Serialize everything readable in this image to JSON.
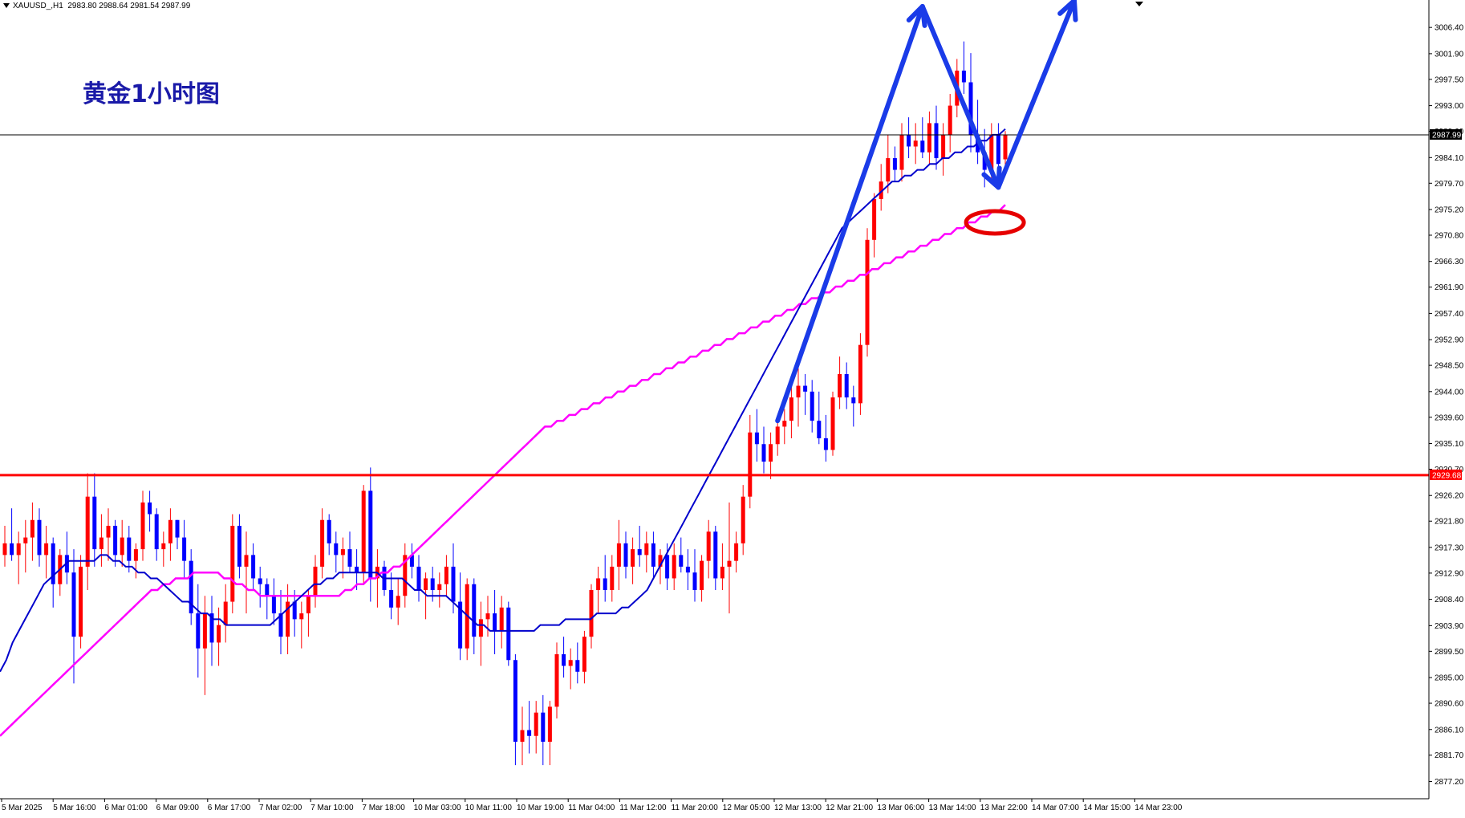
{
  "header": {
    "symbol": "XAUUSD_,H1",
    "ohlc": "2983.80 2988.64 2981.54 2987.99"
  },
  "overlay_title": "黄金1小时图",
  "colors": {
    "bull": "#ff0000",
    "bear": "#0000ff",
    "ma_fast": "#0000cc",
    "ma_slow": "#ff00ff",
    "support": "#ff0000",
    "annotation": "#1a3be8"
  },
  "chart_data": {
    "type": "candlestick",
    "symbol": "XAUUSD",
    "timeframe": "H1",
    "ylim": [
      2875.2,
      3010.0
    ],
    "y_ticks": [
      "3006.40",
      "3001.90",
      "2997.50",
      "2993.00",
      "2988.60",
      "2984.10",
      "2979.70",
      "2975.20",
      "2970.80",
      "2966.30",
      "2961.90",
      "2957.40",
      "2952.90",
      "2948.50",
      "2944.00",
      "2939.60",
      "2935.10",
      "2930.70",
      "2926.20",
      "2921.80",
      "2917.30",
      "2912.90",
      "2908.40",
      "2903.90",
      "2899.50",
      "2895.00",
      "2890.60",
      "2886.10",
      "2881.70",
      "2877.20"
    ],
    "x_ticks": [
      "5 Mar 2025",
      "5 Mar 16:00",
      "6 Mar 01:00",
      "6 Mar 09:00",
      "6 Mar 17:00",
      "7 Mar 02:00",
      "7 Mar 10:00",
      "7 Mar 18:00",
      "10 Mar 03:00",
      "10 Mar 11:00",
      "10 Mar 19:00",
      "11 Mar 04:00",
      "11 Mar 12:00",
      "11 Mar 20:00",
      "12 Mar 05:00",
      "12 Mar 13:00",
      "12 Mar 21:00",
      "13 Mar 06:00",
      "13 Mar 14:00",
      "13 Mar 22:00",
      "14 Mar 07:00",
      "14 Mar 15:00",
      "14 Mar 23:00"
    ],
    "current_price": 2987.99,
    "current_price_label": "2987.99",
    "support_level": 2929.68,
    "support_label": "2929.68",
    "candles": [
      [
        2916,
        2921,
        2914,
        2918
      ],
      [
        2918,
        2924,
        2915,
        2916
      ],
      [
        2916,
        2920,
        2911,
        2918
      ],
      [
        2918,
        2922,
        2913,
        2919
      ],
      [
        2919,
        2925,
        2915,
        2922
      ],
      [
        2922,
        2924,
        2914,
        2916
      ],
      [
        2916,
        2921,
        2912,
        2918
      ],
      [
        2918,
        2919,
        2907,
        2911
      ],
      [
        2911,
        2917,
        2909,
        2916
      ],
      [
        2916,
        2920,
        2911,
        2913
      ],
      [
        2913,
        2917,
        2894,
        2902
      ],
      [
        2902,
        2916,
        2900,
        2914
      ],
      [
        2914,
        2930,
        2910,
        2926
      ],
      [
        2926,
        2930,
        2914,
        2917
      ],
      [
        2917,
        2923,
        2914,
        2919
      ],
      [
        2919,
        2924,
        2915,
        2921
      ],
      [
        2921,
        2922,
        2914,
        2916
      ],
      [
        2916,
        2922,
        2914,
        2919
      ],
      [
        2919,
        2921,
        2913,
        2915
      ],
      [
        2915,
        2918,
        2912,
        2917
      ],
      [
        2917,
        2927,
        2915,
        2925
      ],
      [
        2925,
        2927,
        2920,
        2923
      ],
      [
        2923,
        2924,
        2915,
        2917
      ],
      [
        2917,
        2920,
        2914,
        2918
      ],
      [
        2918,
        2924,
        2915,
        2922
      ],
      [
        2922,
        2922,
        2917,
        2919
      ],
      [
        2919,
        2922,
        2912,
        2915
      ],
      [
        2915,
        2917,
        2904,
        2906
      ],
      [
        2906,
        2911,
        2895,
        2900
      ],
      [
        2900,
        2909,
        2892,
        2906
      ],
      [
        2906,
        2909,
        2897,
        2901
      ],
      [
        2901,
        2907,
        2897,
        2904
      ],
      [
        2904,
        2911,
        2901,
        2908
      ],
      [
        2908,
        2923,
        2906,
        2921
      ],
      [
        2921,
        2923,
        2912,
        2914
      ],
      [
        2914,
        2920,
        2906,
        2916
      ],
      [
        2916,
        2918,
        2910,
        2912
      ],
      [
        2912,
        2914,
        2907,
        2911
      ],
      [
        2911,
        2912,
        2905,
        2909
      ],
      [
        2909,
        2912,
        2904,
        2906
      ],
      [
        2906,
        2910,
        2899,
        2902
      ],
      [
        2902,
        2911,
        2899,
        2908
      ],
      [
        2908,
        2910,
        2902,
        2905
      ],
      [
        2905,
        2908,
        2900,
        2906
      ],
      [
        2906,
        2910,
        2902,
        2909
      ],
      [
        2909,
        2916,
        2907,
        2914
      ],
      [
        2914,
        2924,
        2912,
        2922
      ],
      [
        2922,
        2923,
        2916,
        2918
      ],
      [
        2918,
        2920,
        2913,
        2916
      ],
      [
        2916,
        2919,
        2912,
        2917
      ],
      [
        2917,
        2920,
        2913,
        2914
      ],
      [
        2914,
        2917,
        2910,
        2913
      ],
      [
        2913,
        2928,
        2911,
        2927
      ],
      [
        2927,
        2931,
        2908,
        2912
      ],
      [
        2912,
        2917,
        2907,
        2914
      ],
      [
        2914,
        2915,
        2909,
        2910
      ],
      [
        2910,
        2913,
        2905,
        2907
      ],
      [
        2907,
        2912,
        2904,
        2909
      ],
      [
        2909,
        2918,
        2907,
        2916
      ],
      [
        2916,
        2918,
        2912,
        2914
      ],
      [
        2914,
        2916,
        2908,
        2910
      ],
      [
        2910,
        2913,
        2905,
        2912
      ],
      [
        2912,
        2914,
        2908,
        2910
      ],
      [
        2910,
        2913,
        2907,
        2911
      ],
      [
        2911,
        2916,
        2909,
        2914
      ],
      [
        2914,
        2918,
        2906,
        2908
      ],
      [
        2908,
        2913,
        2898,
        2900
      ],
      [
        2900,
        2912,
        2898,
        2911
      ],
      [
        2911,
        2912,
        2899,
        2902
      ],
      [
        2902,
        2908,
        2897,
        2905
      ],
      [
        2905,
        2909,
        2902,
        2906
      ],
      [
        2906,
        2910,
        2899,
        2903
      ],
      [
        2903,
        2909,
        2900,
        2907
      ],
      [
        2907,
        2908,
        2897,
        2898
      ],
      [
        2898,
        2899,
        2880,
        2884
      ],
      [
        2884,
        2890,
        2880,
        2886
      ],
      [
        2886,
        2891,
        2882,
        2885
      ],
      [
        2885,
        2891,
        2882,
        2889
      ],
      [
        2889,
        2892,
        2880,
        2884
      ],
      [
        2884,
        2891,
        2880,
        2890
      ],
      [
        2890,
        2901,
        2888,
        2899
      ],
      [
        2899,
        2902,
        2895,
        2897
      ],
      [
        2897,
        2900,
        2893,
        2898
      ],
      [
        2898,
        2901,
        2894,
        2896
      ],
      [
        2896,
        2903,
        2894,
        2902
      ],
      [
        2902,
        2911,
        2900,
        2910
      ],
      [
        2910,
        2914,
        2906,
        2912
      ],
      [
        2912,
        2916,
        2908,
        2910
      ],
      [
        2910,
        2916,
        2908,
        2914
      ],
      [
        2914,
        2922,
        2910,
        2918
      ],
      [
        2918,
        2920,
        2912,
        2914
      ],
      [
        2914,
        2919,
        2911,
        2917
      ],
      [
        2917,
        2921,
        2914,
        2916
      ],
      [
        2916,
        2920,
        2913,
        2918
      ],
      [
        2918,
        2920,
        2912,
        2914
      ],
      [
        2914,
        2917,
        2911,
        2916
      ],
      [
        2916,
        2918,
        2910,
        2912
      ],
      [
        2912,
        2918,
        2910,
        2916
      ],
      [
        2916,
        2919,
        2913,
        2914
      ],
      [
        2914,
        2917,
        2910,
        2913
      ],
      [
        2913,
        2917,
        2908,
        2910
      ],
      [
        2910,
        2916,
        2908,
        2915
      ],
      [
        2915,
        2922,
        2912,
        2920
      ],
      [
        2920,
        2921,
        2910,
        2912
      ],
      [
        2912,
        2918,
        2910,
        2914
      ],
      [
        2914,
        2925,
        2906,
        2915
      ],
      [
        2915,
        2920,
        2913,
        2918
      ],
      [
        2918,
        2928,
        2916,
        2926
      ],
      [
        2926,
        2940,
        2924,
        2937
      ],
      [
        2937,
        2941,
        2932,
        2935
      ],
      [
        2935,
        2938,
        2930,
        2932
      ],
      [
        2932,
        2937,
        2929,
        2935
      ],
      [
        2935,
        2940,
        2933,
        2938
      ],
      [
        2938,
        2941,
        2935,
        2939
      ],
      [
        2939,
        2945,
        2936,
        2943
      ],
      [
        2943,
        2948,
        2938,
        2945
      ],
      [
        2945,
        2947,
        2940,
        2944
      ],
      [
        2944,
        2946,
        2937,
        2939
      ],
      [
        2939,
        2944,
        2935,
        2936
      ],
      [
        2936,
        2940,
        2932,
        2934
      ],
      [
        2934,
        2944,
        2933,
        2943
      ],
      [
        2943,
        2950,
        2941,
        2947
      ],
      [
        2947,
        2949,
        2941,
        2943
      ],
      [
        2943,
        2945,
        2938,
        2942
      ],
      [
        2942,
        2954,
        2940,
        2952
      ],
      [
        2952,
        2972,
        2950,
        2970
      ],
      [
        2970,
        2978,
        2967,
        2977
      ],
      [
        2977,
        2983,
        2975,
        2980
      ],
      [
        2980,
        2988,
        2978,
        2984
      ],
      [
        2984,
        2986,
        2980,
        2982
      ],
      [
        2982,
        2990,
        2980,
        2988
      ],
      [
        2988,
        2991,
        2984,
        2986
      ],
      [
        2986,
        2990,
        2983,
        2987
      ],
      [
        2987,
        2991,
        2984,
        2985
      ],
      [
        2985,
        2992,
        2983,
        2990
      ],
      [
        2990,
        2993,
        2982,
        2984
      ],
      [
        2984,
        2990,
        2981,
        2988
      ],
      [
        2988,
        2995,
        2985,
        2993
      ],
      [
        2993,
        3001,
        2991,
        2999
      ],
      [
        2999,
        3004,
        2995,
        2997
      ],
      [
        2997,
        3002,
        2985,
        2988
      ],
      [
        2988,
        2994,
        2983,
        2985
      ],
      [
        2985,
        2989,
        2979,
        2982
      ],
      [
        2982,
        2990,
        2980,
        2988
      ],
      [
        2988,
        2990,
        2981,
        2983
      ],
      [
        2983.8,
        2988.64,
        2981.54,
        2987.99
      ]
    ],
    "ma_fast": {
      "name": "",
      "values": [
        2896,
        2898,
        2901,
        2903,
        2905,
        2907,
        2909,
        2911,
        2912,
        2913,
        2914,
        2915,
        2915,
        2915,
        2915,
        2915,
        2916,
        2916,
        2915,
        2915,
        2914,
        2914,
        2913,
        2913,
        2912,
        2912,
        2911,
        2910,
        2909,
        2908,
        2908,
        2907,
        2906,
        2906,
        2905,
        2905,
        2904,
        2904,
        2904,
        2904,
        2904,
        2904,
        2904,
        2904,
        2905,
        2906,
        2907,
        2908,
        2909,
        2910,
        2911,
        2911,
        2912,
        2912,
        2913,
        2913,
        2913,
        2913,
        2913,
        2913,
        2913,
        2912,
        2912,
        2912,
        2912,
        2911,
        2910,
        2910,
        2909,
        2909,
        2909,
        2909,
        2908,
        2907,
        2906,
        2905,
        2904,
        2904,
        2903,
        2903,
        2903,
        2903,
        2903,
        2903,
        2903,
        2903,
        2904,
        2904,
        2904,
        2904,
        2905,
        2905,
        2905,
        2905,
        2905,
        2906,
        2906,
        2906,
        2906,
        2907,
        2907,
        2908,
        2909,
        2910,
        2912,
        2914,
        2916,
        2918,
        2920,
        2922,
        2924,
        2926,
        2928,
        2930,
        2932,
        2934,
        2936,
        2938,
        2940,
        2942,
        2944,
        2946,
        2948,
        2950,
        2952,
        2954,
        2956,
        2958,
        2960,
        2962,
        2964,
        2966,
        2968,
        2970,
        2972,
        2973,
        2974,
        2975,
        2976,
        2977,
        2978,
        2979,
        2980,
        2980,
        2981,
        2981,
        2982,
        2982,
        2983,
        2983,
        2984,
        2984,
        2985,
        2985,
        2986,
        2986,
        2987,
        2987,
        2988,
        2988,
        2989
      ]
    },
    "ma_slow": {
      "name": "",
      "values": [
        2885,
        2886,
        2887,
        2888,
        2889,
        2890,
        2891,
        2892,
        2893,
        2894,
        2895,
        2896,
        2897,
        2898,
        2899,
        2900,
        2901,
        2902,
        2903,
        2904,
        2905,
        2906,
        2907,
        2908,
        2909,
        2910,
        2910,
        2911,
        2911,
        2912,
        2912,
        2912,
        2913,
        2913,
        2913,
        2913,
        2913,
        2912,
        2912,
        2911,
        2911,
        2910,
        2910,
        2909,
        2909,
        2909,
        2909,
        2909,
        2909,
        2909,
        2909,
        2909,
        2909,
        2909,
        2909,
        2909,
        2909,
        2910,
        2910,
        2911,
        2911,
        2912,
        2912,
        2913,
        2913,
        2914,
        2914,
        2915,
        2916,
        2917,
        2918,
        2919,
        2920,
        2921,
        2922,
        2923,
        2924,
        2925,
        2926,
        2927,
        2928,
        2929,
        2930,
        2931,
        2932,
        2933,
        2934,
        2935,
        2936,
        2937,
        2938,
        2938,
        2939,
        2939,
        2940,
        2940,
        2941,
        2941,
        2942,
        2942,
        2943,
        2943,
        2944,
        2944,
        2945,
        2945,
        2946,
        2946,
        2947,
        2947,
        2948,
        2948,
        2949,
        2949,
        2950,
        2950,
        2951,
        2951,
        2952,
        2952,
        2953,
        2953,
        2954,
        2954,
        2955,
        2955,
        2956,
        2956,
        2957,
        2957,
        2958,
        2958,
        2959,
        2959,
        2960,
        2960,
        2961,
        2961,
        2962,
        2962,
        2963,
        2963,
        2964,
        2964,
        2965,
        2965,
        2966,
        2966,
        2967,
        2967,
        2968,
        2968,
        2969,
        2969,
        2970,
        2970,
        2971,
        2971,
        2972,
        2972,
        2973,
        2973,
        2974,
        2974,
        2975,
        2975,
        2976
      ]
    },
    "annotations": {
      "arrow_path": [
        [
          0,
          2939
        ],
        [
          0,
          3010
        ],
        [
          0,
          2979
        ],
        [
          0,
          3011
        ]
      ],
      "target_ellipse": 2973
    }
  }
}
